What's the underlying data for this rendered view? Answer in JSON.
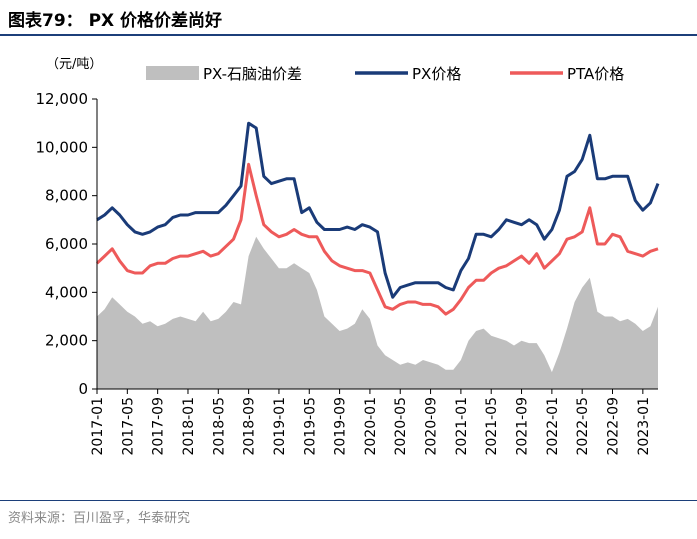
{
  "figure": {
    "title": "图表79： PX 价格价差尚好",
    "source": "资料来源：百川盈孚，华泰研究"
  },
  "chart_data": {
    "type": "line",
    "unit_label": "（元/吨）",
    "x": [
      "2017-01",
      "2017-02",
      "2017-03",
      "2017-04",
      "2017-05",
      "2017-06",
      "2017-07",
      "2017-08",
      "2017-09",
      "2017-10",
      "2017-11",
      "2017-12",
      "2018-01",
      "2018-02",
      "2018-03",
      "2018-04",
      "2018-05",
      "2018-06",
      "2018-07",
      "2018-08",
      "2018-09",
      "2018-10",
      "2018-11",
      "2018-12",
      "2019-01",
      "2019-02",
      "2019-03",
      "2019-04",
      "2019-05",
      "2019-06",
      "2019-07",
      "2019-08",
      "2019-09",
      "2019-10",
      "2019-11",
      "2019-12",
      "2020-01",
      "2020-02",
      "2020-03",
      "2020-04",
      "2020-05",
      "2020-06",
      "2020-07",
      "2020-08",
      "2020-09",
      "2020-10",
      "2020-11",
      "2020-12",
      "2021-01",
      "2021-02",
      "2021-03",
      "2021-04",
      "2021-05",
      "2021-06",
      "2021-07",
      "2021-08",
      "2021-09",
      "2021-10",
      "2021-11",
      "2021-12",
      "2022-01",
      "2022-02",
      "2022-03",
      "2022-04",
      "2022-05",
      "2022-06",
      "2022-07",
      "2022-08",
      "2022-09",
      "2022-10",
      "2022-11",
      "2022-12",
      "2023-01",
      "2023-02",
      "2023-03"
    ],
    "tick_labels": [
      "2017-01",
      "2017-05",
      "2017-09",
      "2018-01",
      "2018-05",
      "2018-09",
      "2019-01",
      "2019-05",
      "2019-09",
      "2020-01",
      "2020-05",
      "2020-09",
      "2021-01",
      "2021-05",
      "2021-09",
      "2022-01",
      "2022-05",
      "2022-09",
      "2023-01"
    ],
    "ylim": [
      0,
      12000
    ],
    "yticks": [
      0,
      2000,
      4000,
      6000,
      8000,
      10000,
      12000
    ],
    "ytick_labels": [
      "0",
      "2,000",
      "4,000",
      "6,000",
      "8,000",
      "10,000",
      "12,000"
    ],
    "legend_position": "top",
    "series": [
      {
        "name": "PX-石脑油价差",
        "kind": "area",
        "color": "#bfbfbf",
        "values": [
          3000,
          3300,
          3800,
          3500,
          3200,
          3000,
          2700,
          2800,
          2600,
          2700,
          2900,
          3000,
          2900,
          2800,
          3200,
          2800,
          2900,
          3200,
          3600,
          3500,
          5500,
          6300,
          5800,
          5400,
          5000,
          5000,
          5200,
          5000,
          4800,
          4100,
          3000,
          2700,
          2400,
          2500,
          2700,
          3300,
          2900,
          1800,
          1400,
          1200,
          1000,
          1100,
          1000,
          1200,
          1100,
          1000,
          800,
          800,
          1200,
          2000,
          2400,
          2500,
          2200,
          2100,
          2000,
          1800,
          2000,
          1900,
          1900,
          1400,
          700,
          1500,
          2500,
          3600,
          4200,
          4600,
          3200,
          3000,
          3000,
          2800,
          2900,
          2700,
          2400,
          2600,
          3400
        ]
      },
      {
        "name": "PX价格",
        "kind": "line",
        "color": "#1a3b78",
        "values": [
          7000,
          7200,
          7500,
          7200,
          6800,
          6500,
          6400,
          6500,
          6700,
          6800,
          7100,
          7200,
          7200,
          7300,
          7300,
          7300,
          7300,
          7600,
          8000,
          8400,
          11000,
          10800,
          8800,
          8500,
          8600,
          8700,
          8700,
          7300,
          7500,
          6900,
          6600,
          6600,
          6600,
          6700,
          6600,
          6800,
          6700,
          6500,
          4800,
          3800,
          4200,
          4300,
          4400,
          4400,
          4400,
          4400,
          4200,
          4100,
          4900,
          5400,
          6400,
          6400,
          6300,
          6600,
          7000,
          6900,
          6800,
          7000,
          6800,
          6200,
          6600,
          7400,
          8800,
          9000,
          9500,
          10500,
          8700,
          8700,
          8800,
          8800,
          8800,
          7800,
          7400,
          7700,
          8500
        ]
      },
      {
        "name": "PTA价格",
        "kind": "line",
        "color": "#ee5a5a",
        "values": [
          5200,
          5500,
          5800,
          5300,
          4900,
          4800,
          4800,
          5100,
          5200,
          5200,
          5400,
          5500,
          5500,
          5600,
          5700,
          5500,
          5600,
          5900,
          6200,
          7000,
          9300,
          8000,
          6800,
          6500,
          6300,
          6400,
          6600,
          6400,
          6300,
          6300,
          5700,
          5300,
          5100,
          5000,
          4900,
          4900,
          4800,
          4100,
          3400,
          3300,
          3500,
          3600,
          3600,
          3500,
          3500,
          3400,
          3100,
          3300,
          3700,
          4200,
          4500,
          4500,
          4800,
          5000,
          5100,
          5300,
          5500,
          5200,
          5600,
          5000,
          5300,
          5600,
          6200,
          6300,
          6500,
          7500,
          6000,
          6000,
          6400,
          6300,
          5700,
          5600,
          5500,
          5700,
          5800
        ]
      }
    ]
  }
}
